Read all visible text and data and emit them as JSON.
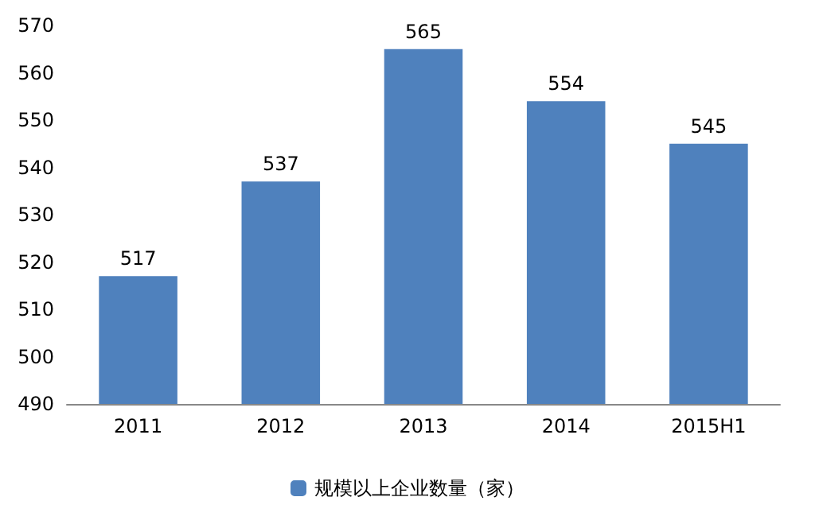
{
  "chart_data": {
    "type": "bar",
    "categories": [
      "2011",
      "2012",
      "2013",
      "2014",
      "2015H1"
    ],
    "series": [
      {
        "name": "规模以上企业数量（家）",
        "color": "#4f81bd",
        "values": [
          517,
          537,
          565,
          554,
          545
        ]
      }
    ],
    "ylim": [
      490,
      570
    ],
    "yticks": [
      490,
      500,
      510,
      520,
      530,
      540,
      550,
      560,
      570
    ],
    "grid": false,
    "legend": "bottom",
    "data_labels": true
  }
}
